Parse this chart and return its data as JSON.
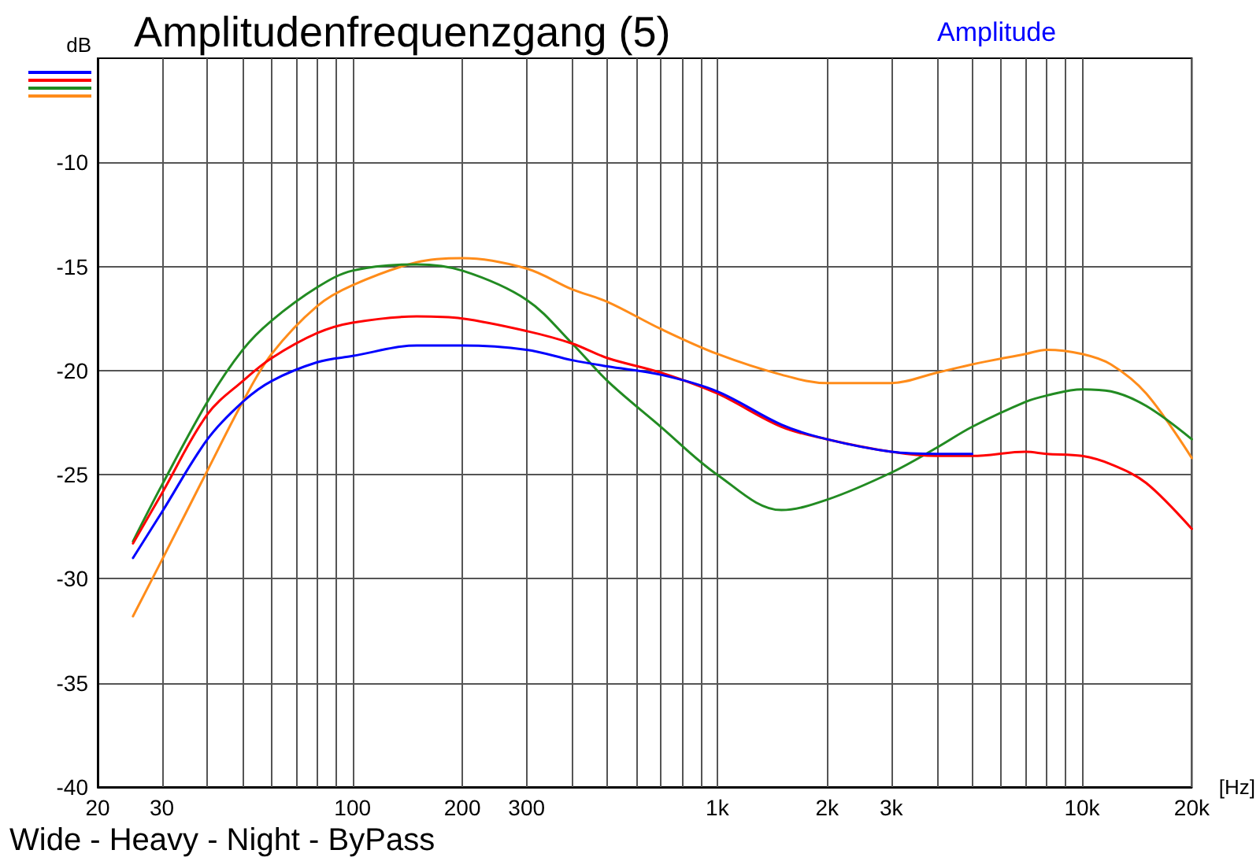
{
  "chart_data": {
    "type": "line",
    "title": "Amplitudenfrequenzgang (5)",
    "subtitle": "Amplitude",
    "ylabel": "dB",
    "xlabel": "[Hz]",
    "annotations": [
      "Wide - Heavy - Night - ByPass"
    ],
    "x": [
      25,
      30,
      40,
      50,
      60,
      80,
      100,
      150,
      200,
      300,
      400,
      500,
      700,
      1000,
      1500,
      2000,
      3000,
      4000,
      5000,
      7000,
      8000,
      10000,
      12000,
      15000,
      20000
    ],
    "series": [
      {
        "color": "#0000ff",
        "values": [
          -29.0,
          -26.8,
          -23.3,
          -21.5,
          -20.5,
          -19.6,
          -19.3,
          -18.8,
          -18.8,
          -19.0,
          -19.5,
          -19.8,
          -20.2,
          -21.0,
          -22.6,
          -23.3,
          -23.9,
          -24.0,
          -24.0,
          null,
          null,
          null,
          null,
          null,
          null
        ]
      },
      {
        "color": "#ff0000",
        "values": [
          -28.3,
          -25.9,
          -22.1,
          -20.5,
          -19.4,
          -18.2,
          -17.7,
          -17.4,
          -17.5,
          -18.1,
          -18.7,
          -19.4,
          -20.1,
          -21.1,
          -22.7,
          -23.3,
          -23.9,
          -24.1,
          -24.1,
          -23.9,
          -24.0,
          -24.1,
          -24.5,
          -25.4,
          -27.6
        ]
      },
      {
        "color": "#228b22",
        "values": [
          -28.2,
          -25.5,
          -21.5,
          -19.0,
          -17.6,
          -16.0,
          -15.2,
          -14.9,
          -15.2,
          -16.6,
          -18.7,
          -20.5,
          -22.7,
          -25.0,
          -26.7,
          -26.2,
          -24.9,
          -23.7,
          -22.7,
          -21.5,
          -21.2,
          -20.9,
          -21.0,
          -21.7,
          -23.3
        ]
      },
      {
        "color": "#ff8c1a",
        "values": [
          -31.8,
          -29.1,
          -24.8,
          -21.5,
          -19.2,
          -16.9,
          -15.9,
          -14.8,
          -14.6,
          -15.1,
          -16.1,
          -16.7,
          -18.0,
          -19.2,
          -20.2,
          -20.6,
          -20.6,
          -20.1,
          -19.7,
          -19.2,
          -19.0,
          -19.2,
          -19.7,
          -21.1,
          -24.2
        ]
      }
    ],
    "log": "x",
    "xlim": [
      20,
      20000
    ],
    "xticks": [
      20,
      30,
      {
        "value": 40,
        "label": null
      },
      {
        "value": 50,
        "label": null
      },
      {
        "value": 60,
        "label": null
      },
      {
        "value": 70,
        "label": null
      },
      {
        "value": 80,
        "label": null
      },
      {
        "value": 90,
        "label": null
      },
      100,
      200,
      300,
      {
        "value": 400,
        "label": null
      },
      {
        "value": 500,
        "label": null
      },
      {
        "value": 600,
        "label": null
      },
      {
        "value": 700,
        "label": null
      },
      {
        "value": 800,
        "label": null
      },
      {
        "value": 900,
        "label": null
      },
      {
        "value": 1000,
        "label": "1k"
      },
      {
        "value": 2000,
        "label": "2k"
      },
      {
        "value": 3000,
        "label": "3k"
      },
      {
        "value": 4000,
        "label": null
      },
      {
        "value": 5000,
        "label": null
      },
      {
        "value": 6000,
        "label": null
      },
      {
        "value": 7000,
        "label": null
      },
      {
        "value": 8000,
        "label": null
      },
      {
        "value": 9000,
        "label": null
      },
      {
        "value": 10000,
        "label": "10k"
      },
      {
        "value": 20000,
        "label": "20k"
      }
    ],
    "ylim": [
      -40,
      -5
    ],
    "yticks": [
      -40,
      -35,
      -30,
      -25,
      -20,
      -15,
      -10
    ],
    "grid": true,
    "marker": "none",
    "line_style": "solid"
  }
}
